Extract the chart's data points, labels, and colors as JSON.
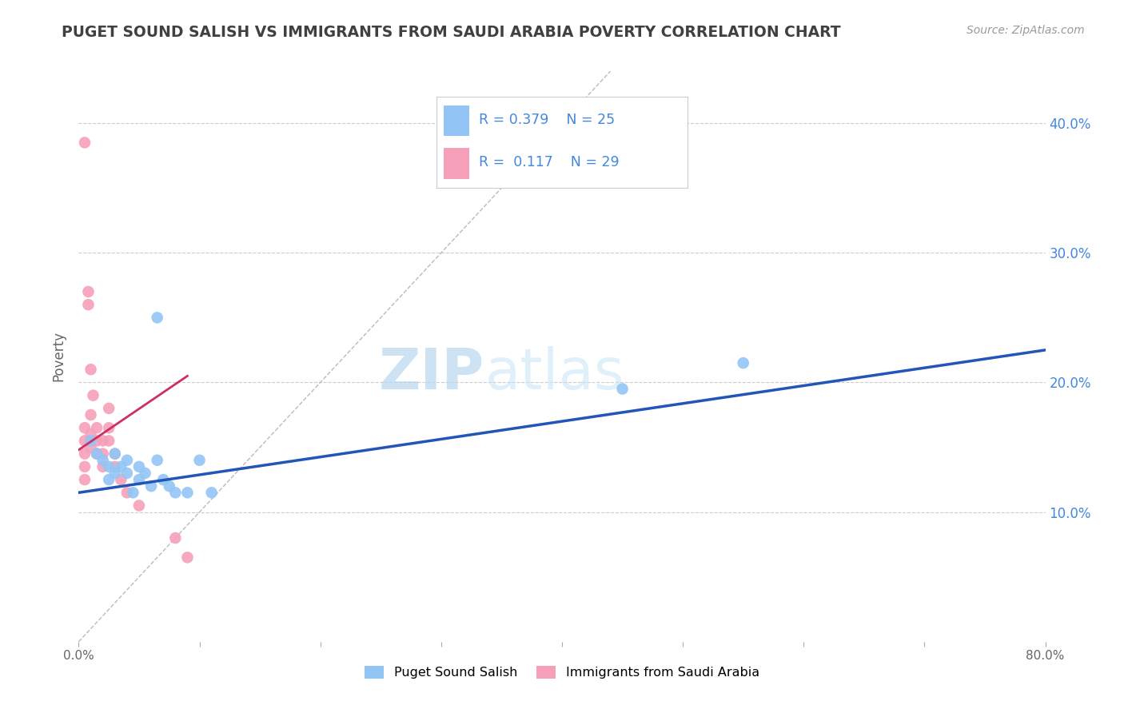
{
  "title": "PUGET SOUND SALISH VS IMMIGRANTS FROM SAUDI ARABIA POVERTY CORRELATION CHART",
  "source": "Source: ZipAtlas.com",
  "ylabel": "Poverty",
  "xlim": [
    0.0,
    0.8
  ],
  "ylim": [
    0.0,
    0.44
  ],
  "ytick_positions": [
    0.1,
    0.2,
    0.3,
    0.4
  ],
  "ytick_labels": [
    "10.0%",
    "20.0%",
    "30.0%",
    "40.0%"
  ],
  "R_blue": 0.379,
  "N_blue": 25,
  "R_pink": 0.117,
  "N_pink": 29,
  "blue_scatter_x": [
    0.01,
    0.015,
    0.02,
    0.025,
    0.025,
    0.03,
    0.03,
    0.035,
    0.04,
    0.04,
    0.045,
    0.05,
    0.05,
    0.055,
    0.06,
    0.065,
    0.065,
    0.07,
    0.075,
    0.08,
    0.09,
    0.1,
    0.11,
    0.45,
    0.55
  ],
  "blue_scatter_y": [
    0.155,
    0.145,
    0.14,
    0.135,
    0.125,
    0.13,
    0.145,
    0.135,
    0.13,
    0.14,
    0.115,
    0.125,
    0.135,
    0.13,
    0.12,
    0.14,
    0.25,
    0.125,
    0.12,
    0.115,
    0.115,
    0.14,
    0.115,
    0.195,
    0.215
  ],
  "pink_scatter_x": [
    0.005,
    0.005,
    0.005,
    0.005,
    0.005,
    0.005,
    0.008,
    0.008,
    0.01,
    0.01,
    0.01,
    0.01,
    0.012,
    0.015,
    0.015,
    0.015,
    0.02,
    0.02,
    0.02,
    0.025,
    0.025,
    0.025,
    0.03,
    0.03,
    0.035,
    0.04,
    0.05,
    0.08,
    0.09
  ],
  "pink_scatter_y": [
    0.385,
    0.165,
    0.155,
    0.145,
    0.135,
    0.125,
    0.27,
    0.26,
    0.21,
    0.175,
    0.16,
    0.15,
    0.19,
    0.165,
    0.155,
    0.145,
    0.155,
    0.145,
    0.135,
    0.18,
    0.165,
    0.155,
    0.145,
    0.135,
    0.125,
    0.115,
    0.105,
    0.08,
    0.065
  ],
  "blue_line_x": [
    0.0,
    0.8
  ],
  "blue_line_y": [
    0.115,
    0.225
  ],
  "pink_line_x": [
    0.0,
    0.09
  ],
  "pink_line_y": [
    0.148,
    0.205
  ],
  "diag_line_x": [
    0.0,
    0.44
  ],
  "diag_line_y": [
    0.0,
    0.44
  ],
  "watermark_zip": "ZIP",
  "watermark_atlas": "atlas",
  "background_color": "#ffffff",
  "blue_color": "#92C5F5",
  "pink_color": "#F5A0B8",
  "blue_line_color": "#2255B8",
  "pink_line_color": "#CC3060",
  "legend_R_color": "#4488DD",
  "grid_color": "#cccccc",
  "title_color": "#404040"
}
